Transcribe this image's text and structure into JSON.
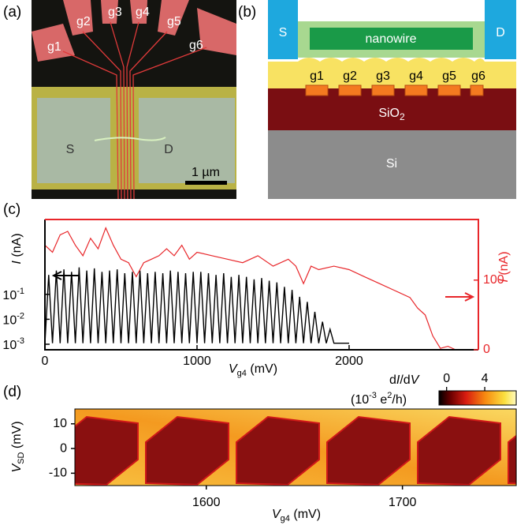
{
  "panel_labels": [
    "(a)",
    "(b)",
    "(c)",
    "(d)"
  ],
  "micrograph": {
    "gates": [
      "g1",
      "g2",
      "g3",
      "g4",
      "g5",
      "g6"
    ],
    "source": "S",
    "drain": "D",
    "scale_bar": "1 µm"
  },
  "device_diagram": {
    "source": "S",
    "drain": "D",
    "nanowire": "nanowire",
    "gates": [
      "g1",
      "g2",
      "g3",
      "g4",
      "g5",
      "g6"
    ],
    "oxide": [
      "SiO",
      "2"
    ],
    "substrate": "Si"
  },
  "chart_data": [
    {
      "type": "line",
      "x_label": [
        "V",
        "g4",
        " (mV)"
      ],
      "y_label": [
        "I",
        " (nA)"
      ],
      "y2_label": [
        "I",
        " (nA)"
      ],
      "xlim": [
        0,
        2850
      ],
      "xticks": [
        0,
        1000,
        2000
      ],
      "ylim": [
        0.0006,
        100
      ],
      "ylog": true,
      "yticks": [
        {
          "value": 0.001,
          "label": "10",
          "exponent": "-3"
        },
        {
          "value": 0.01,
          "label": "10",
          "exponent": "-2"
        },
        {
          "value": 0.1,
          "label": "10",
          "exponent": "-1"
        }
      ],
      "y2lim": [
        0,
        187
      ],
      "y2ticks": [
        0,
        100
      ],
      "series": [
        {
          "color": "#000000",
          "x": [
            0,
            25,
            50,
            75,
            100,
            125,
            150,
            175,
            200,
            225,
            250,
            275,
            300,
            325,
            350,
            375,
            400,
            425,
            450,
            475,
            500,
            525,
            550,
            575,
            600,
            625,
            650,
            675,
            700,
            725,
            750,
            775,
            800,
            825,
            850,
            875,
            900,
            925,
            950,
            975,
            1000,
            1025,
            1050,
            1075,
            1100,
            1125,
            1150,
            1175,
            1200,
            1225,
            1250,
            1275,
            1300,
            1325,
            1350,
            1375,
            1400,
            1425,
            1450,
            1475,
            1500,
            1525,
            1550,
            1575,
            1600,
            1625,
            1650,
            1675,
            1700,
            1725,
            1750,
            1775,
            1800,
            1825,
            1850,
            1875,
            1900,
            2000
          ],
          "values": [
            0.0011,
            0.6,
            0.0011,
            0.9,
            0.0011,
            1.0,
            0.0011,
            0.8,
            0.0011,
            1.2,
            0.0011,
            0.9,
            0.0011,
            1.1,
            0.0011,
            0.8,
            0.0011,
            0.9,
            0.0011,
            1.0,
            0.0011,
            0.7,
            0.0011,
            0.8,
            0.0011,
            0.9,
            0.0011,
            0.7,
            0.0011,
            0.8,
            0.0011,
            0.7,
            0.0011,
            0.9,
            0.0011,
            0.8,
            0.0011,
            0.7,
            0.0011,
            0.8,
            0.0011,
            0.8,
            0.0011,
            0.7,
            0.0011,
            0.6,
            0.0011,
            0.7,
            0.0011,
            0.5,
            0.0011,
            0.6,
            0.0011,
            0.5,
            0.0011,
            0.4,
            0.0011,
            0.45,
            0.0011,
            0.35,
            0.0011,
            0.3,
            0.0011,
            0.2,
            0.0011,
            0.15,
            0.0011,
            0.08,
            0.0011,
            0.05,
            0.0011,
            0.02,
            0.0011,
            0.008,
            0.0011,
            0.004,
            0.0011,
            0.0011
          ]
        },
        {
          "color": "#e8262a",
          "axis": "y2",
          "x": [
            0,
            50,
            100,
            150,
            200,
            250,
            300,
            350,
            400,
            450,
            500,
            550,
            600,
            650,
            700,
            750,
            800,
            850,
            900,
            950,
            1000,
            1100,
            1200,
            1300,
            1400,
            1500,
            1600,
            1650,
            1700,
            1750,
            1800,
            1900,
            2000,
            2100,
            2200,
            2300,
            2400,
            2450,
            2500,
            2550,
            2600,
            2650,
            2700
          ],
          "values": [
            150,
            140,
            165,
            170,
            150,
            135,
            160,
            145,
            175,
            150,
            130,
            125,
            105,
            125,
            130,
            135,
            145,
            135,
            150,
            130,
            140,
            135,
            130,
            125,
            135,
            120,
            130,
            120,
            95,
            120,
            115,
            120,
            115,
            105,
            95,
            85,
            75,
            60,
            50,
            20,
            2,
            5,
            0
          ]
        }
      ]
    },
    {
      "type": "heatmap",
      "x_label": [
        "V",
        "g4",
        " (mV)"
      ],
      "y_label": [
        "V",
        "SD",
        " (mV)"
      ],
      "xlim": [
        1533,
        1758
      ],
      "xticks": [
        1600,
        1700
      ],
      "ylim": [
        -15,
        16
      ],
      "yticks": [
        -10,
        0,
        10
      ],
      "colorbar_title": [
        "d",
        "I",
        "/d",
        "V"
      ],
      "colorbar_unit": [
        "(10",
        "-3",
        " e",
        "2",
        "/h)"
      ],
      "colorbar_lim": [
        -0.8,
        7.3
      ],
      "colorbar_ticks": [
        0,
        4
      ]
    }
  ]
}
